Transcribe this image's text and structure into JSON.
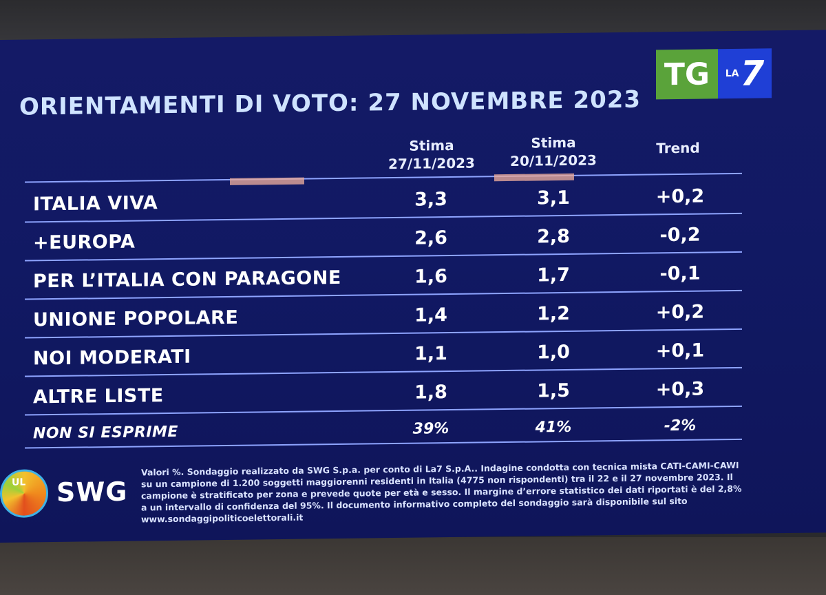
{
  "title": "ORIENTAMENTI DI VOTO: 27 NOVEMBRE 2023",
  "logo": {
    "left": "TG",
    "right_small": "LA",
    "right_big": "7"
  },
  "columns": [
    {
      "line1": "Stima",
      "line2": "27/11/2023"
    },
    {
      "line1": "Stima",
      "line2": "20/11/2023"
    },
    {
      "line1": "Trend",
      "line2": ""
    }
  ],
  "rows": [
    {
      "party": "ITALIA VIVA",
      "c1": "3,3",
      "c2": "3,1",
      "trend": "+0,2"
    },
    {
      "party": "+EUROPA",
      "c1": "2,6",
      "c2": "2,8",
      "trend": "-0,2"
    },
    {
      "party": "PER L’ITALIA CON PARAGONE",
      "c1": "1,6",
      "c2": "1,7",
      "trend": "-0,1"
    },
    {
      "party": "UNIONE POPOLARE",
      "c1": "1,4",
      "c2": "1,2",
      "trend": "+0,2"
    },
    {
      "party": "NOI MODERATI",
      "c1": "1,1",
      "c2": "1,0",
      "trend": "+0,1"
    },
    {
      "party": "ALTRE LISTE",
      "c1": "1,8",
      "c2": "1,5",
      "trend": "+0,3"
    },
    {
      "party": "NON SI ESPRIME",
      "c1": "39%",
      "c2": "41%",
      "trend": "-2%"
    }
  ],
  "swg": {
    "name": "SWG",
    "globe_text": "UL"
  },
  "footnote": "Valori %. Sondaggio realizzato da SWG S.p.a. per conto di La7 S.p.A.. Indagine condotta con tecnica mista CATI-CAMI-CAWI su un campione di 1.200 soggetti maggiorenni residenti in Italia (4775 non rispondenti) tra il 22 e il 27 novembre 2023. Il campione è stratificato per zona e prevede quote per età e sesso. Il margine d’errore statistico dei dati riportati è del 2,8% a un intervallo di confidenza del 95%. Il documento informativo completo del sondaggio sarà disponibile sul sito www.sondaggipoliticoelettorali.it",
  "colors": {
    "screen_bg": "#131a64",
    "title": "#cfe3ff",
    "rule": "#8ea4ff",
    "tg_green": "#5aa33a",
    "la7_blue": "#1f3fd6"
  }
}
